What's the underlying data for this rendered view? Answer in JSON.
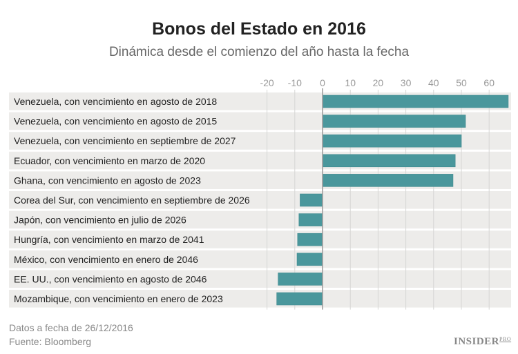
{
  "chart_data": {
    "type": "bar",
    "orientation": "horizontal",
    "title": "Bonos del Estado en 2016",
    "subtitle": "Dinámica desde el comienzo del año hasta la fecha",
    "categories": [
      "Venezuela, con vencimiento en agosto de 2018",
      "Venezuela, con vencimiento en agosto de 2015",
      "Venezuela, con vencimiento en septiembre de 2027",
      "Ecuador, con vencimiento en marzo de 2020",
      "Ghana, con vencimiento en agosto de 2023",
      "Corea del Sur, con vencimiento en septiembre de 2026",
      "Japón, con vencimiento en julio de 2026",
      "Hungría, con vencimiento en marzo de 2041",
      "México, con vencimiento en enero de 2046",
      "EE. UU., con vencimiento en agosto de 2046",
      "Mozambique, con vencimiento en enero de 2023"
    ],
    "values": [
      66.9,
      51.5,
      50.0,
      47.8,
      47.0,
      -8.1,
      -8.5,
      -9.0,
      -9.2,
      -16.0,
      -16.5
    ],
    "xticks": [
      -20,
      -10,
      0,
      10,
      20,
      30,
      40,
      50,
      60
    ],
    "xlim": [
      -22,
      68
    ],
    "grid": true,
    "bar_color": "#4a979c",
    "row_color": "#edecea"
  },
  "footer": {
    "date_note": "Datos a fecha de 26/12/2016",
    "source": "Fuente: Bloomberg"
  },
  "logo": {
    "text": "INSIDER",
    "suffix": "PRO"
  }
}
